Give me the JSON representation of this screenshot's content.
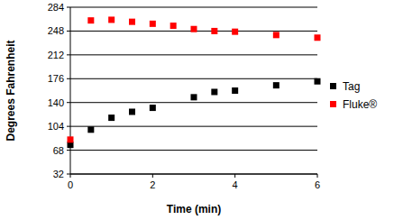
{
  "chart_data": {
    "type": "scatter",
    "x_label": "Time (min)",
    "y_label": "Degrees Fahrenheit",
    "xlim": [
      0,
      6
    ],
    "xticks": [
      0,
      2,
      4,
      6
    ],
    "ylim": [
      32,
      284
    ],
    "yticks": [
      32,
      68,
      104,
      140,
      176,
      212,
      248,
      284
    ],
    "grid": true,
    "legend": "right",
    "series": [
      {
        "name": "Tag",
        "color": "#000000",
        "marker": "square",
        "x": [
          0,
          0.5,
          1,
          1.5,
          2,
          3,
          3.5,
          4,
          5,
          6
        ],
        "values": [
          76,
          99,
          117,
          126,
          132,
          148,
          156,
          158,
          166,
          172
        ]
      },
      {
        "name": "Fluke®",
        "color": "#ff0000",
        "marker": "square",
        "x": [
          0,
          0.5,
          1,
          1.5,
          2,
          2.5,
          3,
          3.5,
          4,
          5,
          6
        ],
        "values": [
          84,
          264,
          265,
          262,
          259,
          256,
          251,
          248,
          247,
          242,
          238
        ]
      }
    ]
  }
}
